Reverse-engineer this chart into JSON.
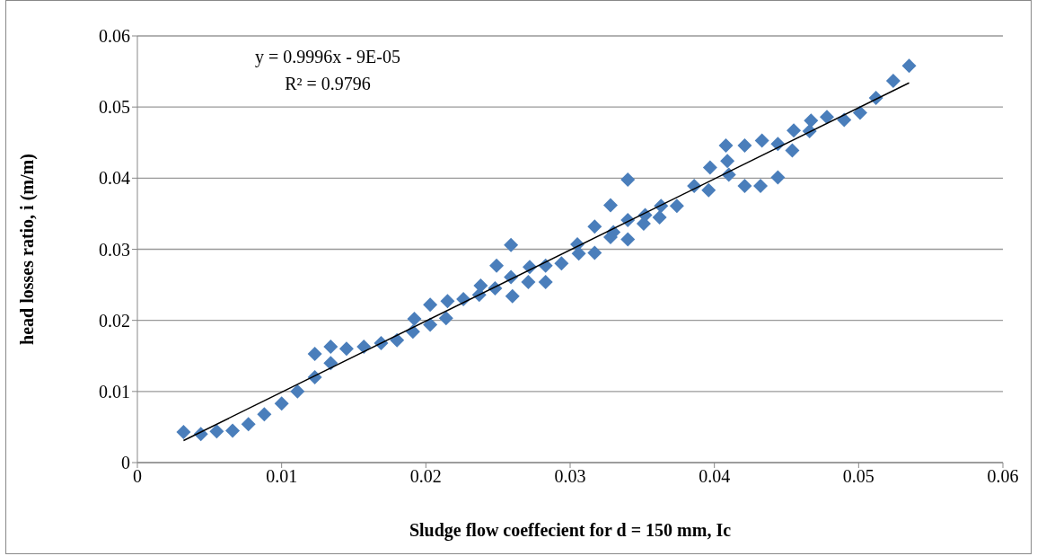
{
  "chart_data": {
    "type": "scatter",
    "xlabel": "Sludge flow coeffecient for d = 150 mm, Ic",
    "ylabel": "head losses ratio, i (m/m)",
    "annotations": [
      "y = 0.9996x - 9E-05",
      "R² = 0.9796"
    ],
    "xlim": [
      0,
      0.06
    ],
    "xticks": [
      0,
      0.01,
      0.02,
      0.03,
      0.04,
      0.05,
      0.06
    ],
    "ylim": [
      0,
      0.06
    ],
    "yticks": [
      0,
      0.01,
      0.02,
      0.03,
      0.04,
      0.05,
      0.06
    ],
    "grid": "y",
    "series": [
      {
        "marker": "diamond",
        "color": "#4a7ebb",
        "x": [
          0.0032,
          0.0044,
          0.0055,
          0.0066,
          0.0077,
          0.0088,
          0.01,
          0.0111,
          0.0123,
          0.0123,
          0.0134,
          0.0134,
          0.0145,
          0.0157,
          0.0169,
          0.018,
          0.0191,
          0.0192,
          0.0203,
          0.0203,
          0.0214,
          0.0215,
          0.0226,
          0.0237,
          0.0238,
          0.0248,
          0.0249,
          0.0259,
          0.026,
          0.0259,
          0.0271,
          0.0272,
          0.0283,
          0.0283,
          0.0294,
          0.0305,
          0.0306,
          0.0317,
          0.0317,
          0.0328,
          0.0328,
          0.033,
          0.034,
          0.034,
          0.034,
          0.0351,
          0.0352,
          0.0362,
          0.0363,
          0.0374,
          0.0386,
          0.0396,
          0.0397,
          0.0408,
          0.0409,
          0.041,
          0.0421,
          0.0421,
          0.0432,
          0.0433,
          0.0444,
          0.0444,
          0.0454,
          0.0455,
          0.0466,
          0.0467,
          0.0478,
          0.049,
          0.0501,
          0.0512,
          0.0524,
          0.0535
        ],
        "values": [
          0.0043,
          0.004,
          0.0044,
          0.0045,
          0.0054,
          0.0068,
          0.0083,
          0.01,
          0.012,
          0.0153,
          0.014,
          0.0163,
          0.016,
          0.0163,
          0.0168,
          0.0172,
          0.0184,
          0.0202,
          0.0194,
          0.0222,
          0.0203,
          0.0227,
          0.023,
          0.0236,
          0.0249,
          0.0245,
          0.0277,
          0.0261,
          0.0234,
          0.0306,
          0.0254,
          0.0275,
          0.0254,
          0.0277,
          0.028,
          0.0307,
          0.0294,
          0.0295,
          0.0332,
          0.0317,
          0.0362,
          0.0324,
          0.0341,
          0.0398,
          0.0314,
          0.0336,
          0.0348,
          0.0345,
          0.0361,
          0.0361,
          0.0389,
          0.0383,
          0.0415,
          0.0446,
          0.0424,
          0.0405,
          0.0389,
          0.0446,
          0.0389,
          0.0453,
          0.0401,
          0.0448,
          0.0439,
          0.0467,
          0.0466,
          0.0481,
          0.0486,
          0.0482,
          0.0492,
          0.0513,
          0.0537,
          0.0558
        ]
      },
      {
        "type": "line",
        "marker": "none",
        "color": "#000000",
        "x": [
          0.0032,
          0.0535
        ],
        "values": [
          0.0031,
          0.0534
        ]
      }
    ]
  }
}
